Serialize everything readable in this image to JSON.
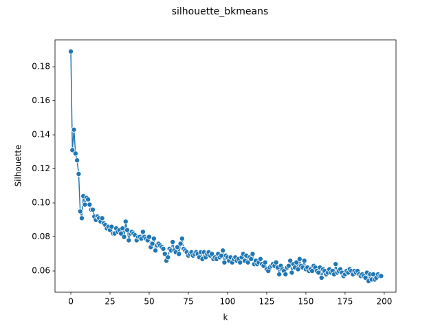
{
  "chart_data": {
    "type": "line",
    "title": "silhouette_bkmeans",
    "x_label": "k",
    "y_label": "Silhouette",
    "color": "#1f77b4",
    "marker": "o",
    "x": [
      0,
      1,
      2,
      3,
      4,
      5,
      6,
      7,
      8,
      9,
      10,
      11,
      12,
      13,
      14,
      15,
      16,
      17,
      18,
      19,
      20,
      21,
      22,
      23,
      24,
      25,
      26,
      27,
      28,
      29,
      30,
      31,
      32,
      33,
      34,
      35,
      36,
      37,
      38,
      39,
      40,
      41,
      42,
      43,
      44,
      45,
      46,
      47,
      48,
      49,
      50,
      51,
      52,
      53,
      54,
      55,
      56,
      57,
      58,
      59,
      60,
      61,
      62,
      63,
      64,
      65,
      66,
      67,
      68,
      69,
      70,
      71,
      72,
      73,
      74,
      75,
      76,
      77,
      78,
      79,
      80,
      81,
      82,
      83,
      84,
      85,
      86,
      87,
      88,
      89,
      90,
      91,
      92,
      93,
      94,
      95,
      96,
      97,
      98,
      99,
      100,
      101,
      102,
      103,
      104,
      105,
      106,
      107,
      108,
      109,
      110,
      111,
      112,
      113,
      114,
      115,
      116,
      117,
      118,
      119,
      120,
      121,
      122,
      123,
      124,
      125,
      126,
      127,
      128,
      129,
      130,
      131,
      132,
      133,
      134,
      135,
      136,
      137,
      138,
      139,
      140,
      141,
      142,
      143,
      144,
      145,
      146,
      147,
      148,
      149,
      150,
      151,
      152,
      153,
      154,
      155,
      156,
      157,
      158,
      159,
      160,
      161,
      162,
      163,
      164,
      165,
      166,
      167,
      168,
      169,
      170,
      171,
      172,
      173,
      174,
      175,
      176,
      177,
      178,
      179,
      180,
      181,
      182,
      183,
      184,
      185,
      186,
      187,
      188,
      189,
      190,
      191,
      192,
      193,
      194,
      195,
      196,
      197,
      198
    ],
    "values": [
      0.189,
      0.131,
      0.143,
      0.129,
      0.125,
      0.117,
      0.095,
      0.091,
      0.104,
      0.099,
      0.103,
      0.102,
      0.099,
      0.096,
      0.096,
      0.092,
      0.09,
      0.092,
      0.091,
      0.089,
      0.091,
      0.088,
      0.087,
      0.085,
      0.086,
      0.084,
      0.086,
      0.082,
      0.082,
      0.085,
      0.083,
      0.084,
      0.082,
      0.085,
      0.08,
      0.089,
      0.084,
      0.078,
      0.082,
      0.083,
      0.082,
      0.081,
      0.078,
      0.08,
      0.08,
      0.079,
      0.083,
      0.08,
      0.079,
      0.078,
      0.08,
      0.074,
      0.076,
      0.079,
      0.072,
      0.075,
      0.076,
      0.075,
      0.074,
      0.073,
      0.07,
      0.066,
      0.068,
      0.073,
      0.072,
      0.077,
      0.072,
      0.071,
      0.074,
      0.07,
      0.076,
      0.079,
      0.073,
      0.072,
      0.071,
      0.069,
      0.07,
      0.071,
      0.069,
      0.07,
      0.071,
      0.07,
      0.068,
      0.071,
      0.067,
      0.071,
      0.068,
      0.07,
      0.071,
      0.069,
      0.07,
      0.067,
      0.068,
      0.067,
      0.07,
      0.068,
      0.069,
      0.072,
      0.065,
      0.069,
      0.068,
      0.066,
      0.068,
      0.065,
      0.067,
      0.068,
      0.066,
      0.067,
      0.065,
      0.068,
      0.07,
      0.066,
      0.069,
      0.065,
      0.068,
      0.067,
      0.07,
      0.064,
      0.066,
      0.064,
      0.065,
      0.067,
      0.064,
      0.063,
      0.065,
      0.061,
      0.06,
      0.062,
      0.063,
      0.064,
      0.063,
      0.065,
      0.062,
      0.058,
      0.063,
      0.061,
      0.06,
      0.058,
      0.062,
      0.063,
      0.066,
      0.059,
      0.064,
      0.062,
      0.065,
      0.061,
      0.067,
      0.063,
      0.062,
      0.066,
      0.061,
      0.062,
      0.06,
      0.061,
      0.06,
      0.063,
      0.062,
      0.06,
      0.059,
      0.062,
      0.056,
      0.061,
      0.06,
      0.058,
      0.059,
      0.061,
      0.059,
      0.06,
      0.058,
      0.064,
      0.059,
      0.06,
      0.061,
      0.059,
      0.057,
      0.058,
      0.06,
      0.059,
      0.061,
      0.06,
      0.058,
      0.06,
      0.059,
      0.06,
      0.058,
      0.057,
      0.058,
      0.057,
      0.056,
      0.059,
      0.054,
      0.058,
      0.055,
      0.058,
      0.055,
      0.056,
      0.058,
      0.057,
      0.057
    ],
    "xlim": [
      -10.1,
      207.5
    ],
    "ylim": [
      0.0475,
      0.1958
    ],
    "xticks": [
      0,
      25,
      50,
      75,
      100,
      125,
      150,
      175,
      200
    ],
    "yticks": [
      0.06,
      0.08,
      {
        "value": 0.1,
        "label": "0.10"
      },
      0.12,
      0.14,
      0.16,
      0.18
    ]
  }
}
